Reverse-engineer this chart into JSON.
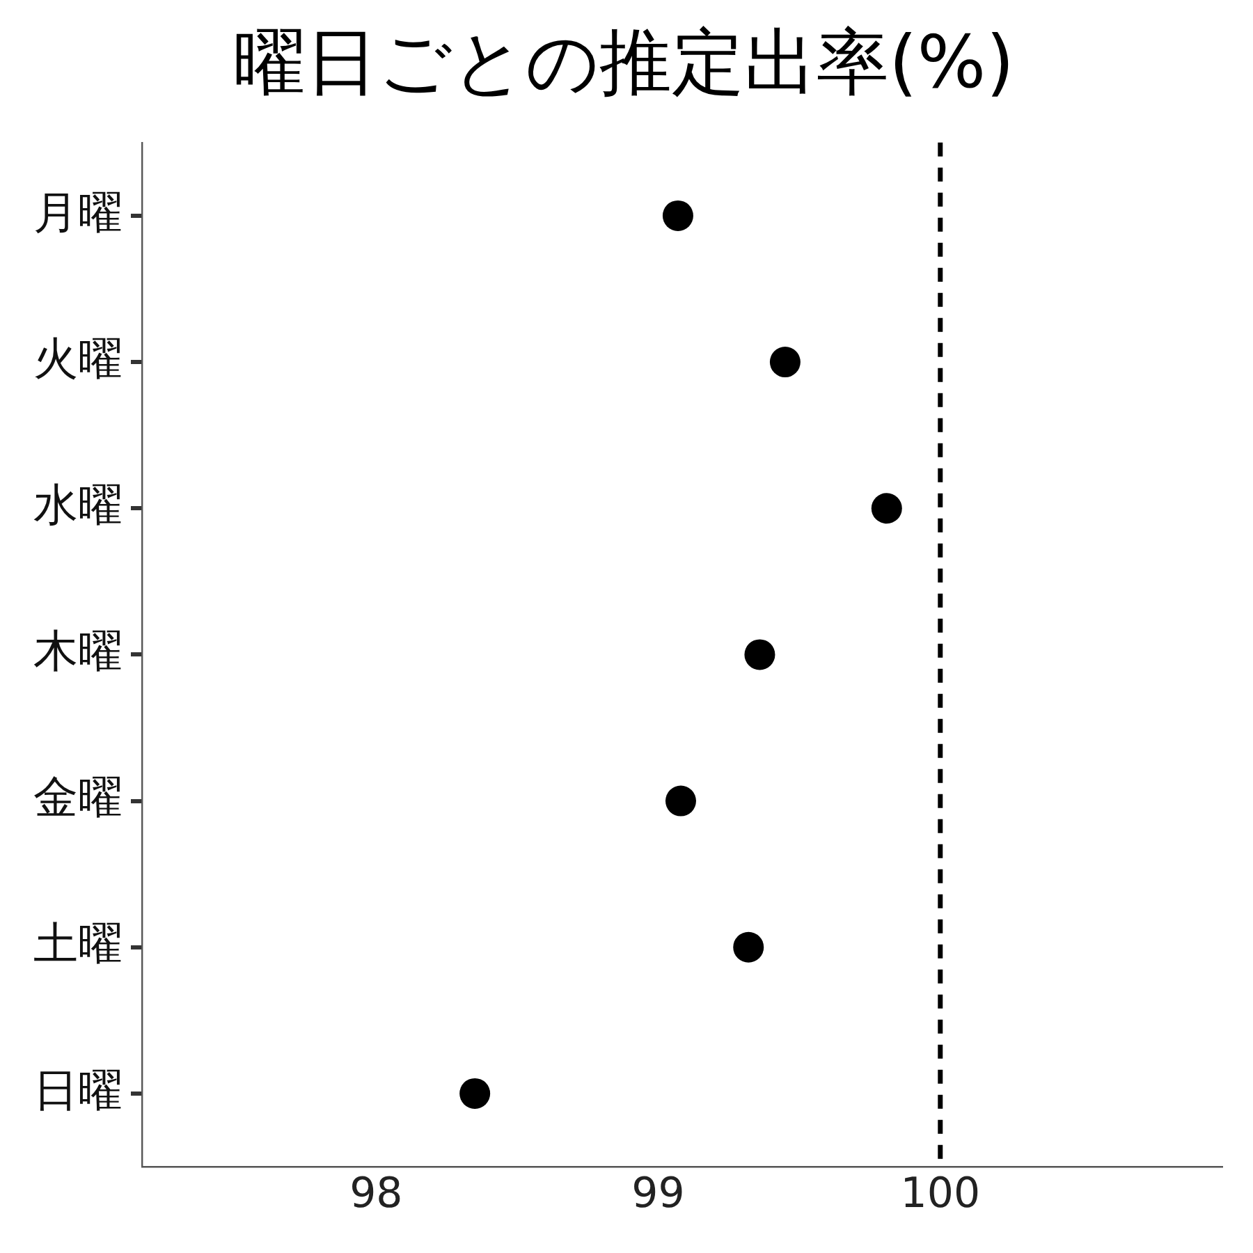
{
  "chart_data": {
    "type": "scatter",
    "title": "曜日ごとの推定出率(%)",
    "orientation": "horizontal",
    "categories": [
      "月曜",
      "火曜",
      "水曜",
      "木曜",
      "金曜",
      "土曜",
      "日曜"
    ],
    "values": [
      99.07,
      99.45,
      99.81,
      99.36,
      99.08,
      99.32,
      98.35
    ],
    "color": "#000000",
    "marker": "circle",
    "xlim": [
      97.17,
      101.0
    ],
    "xticks": [
      98,
      99,
      100
    ],
    "grid": false,
    "legend": false,
    "ref_lines": [
      {
        "axis": "x",
        "value": 100,
        "color": "#000000",
        "line_style": "dashed"
      }
    ]
  }
}
